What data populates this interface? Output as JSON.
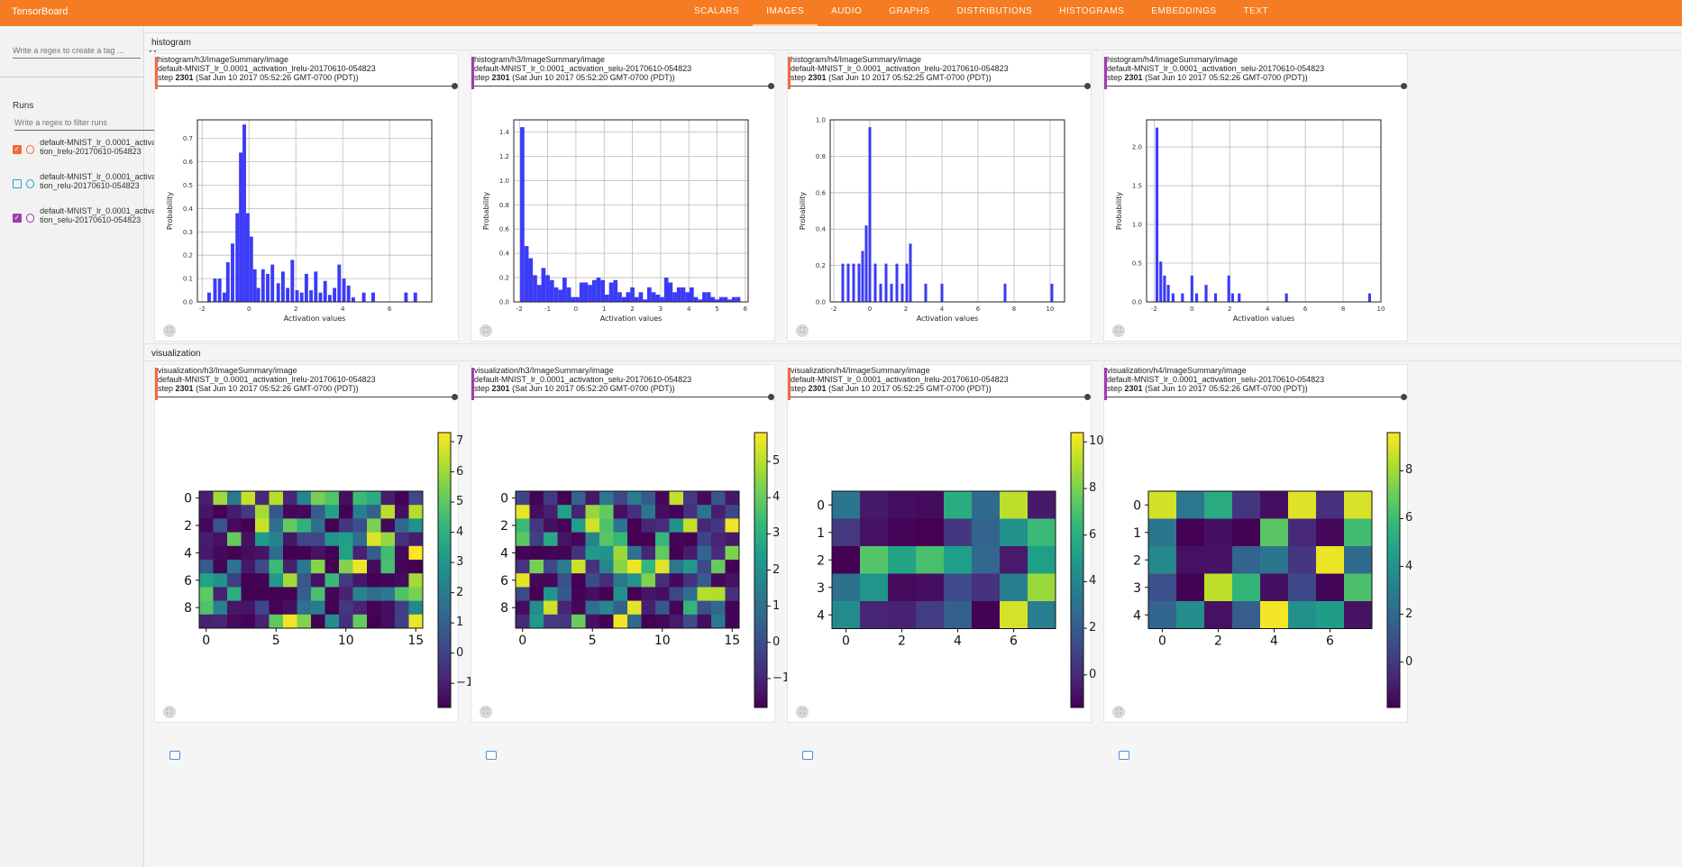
{
  "app": {
    "title": "TensorBoard",
    "tabs": [
      "SCALARS",
      "IMAGES",
      "AUDIO",
      "GRAPHS",
      "DISTRIBUTIONS",
      "HISTOGRAMS",
      "EMBEDDINGS",
      "TEXT"
    ],
    "active_tab": "IMAGES"
  },
  "sidebar": {
    "tag_filter_placeholder": "Write a regex to create a tag ...",
    "runs_title": "Runs",
    "run_filter_placeholder": "Write a regex to filter runs",
    "runs": [
      {
        "label": "default-MNIST_lr_0.0001_activation_lrelu-20170610-054823",
        "checked": true,
        "color": "#ef6c3a"
      },
      {
        "label": "default-MNIST_lr_0.0001_activation_relu-20170610-054823",
        "checked": false,
        "color": "#20a7c4"
      },
      {
        "label": "default-MNIST_lr_0.0001_activation_selu-20170610-054823",
        "checked": true,
        "color": "#a23bb0"
      }
    ]
  },
  "sections": [
    {
      "name": "histogram",
      "cards": [
        {
          "tag": "histogram/h3/ImageSummary/image",
          "run": "default-MNIST_lr_0.0001_activation_lrelu-20170610-054823",
          "step_label": "step",
          "step": "2301",
          "time": "(Sat Jun 10 2017 05:52:26 GMT-0700 (PDT))",
          "color": "#ef6c3a"
        },
        {
          "tag": "histogram/h3/ImageSummary/image",
          "run": "default-MNIST_lr_0.0001_activation_selu-20170610-054823",
          "step_label": "step",
          "step": "2301",
          "time": "(Sat Jun 10 2017 05:52:20 GMT-0700 (PDT))",
          "color": "#a23bb0"
        },
        {
          "tag": "histogram/h4/ImageSummary/image",
          "run": "default-MNIST_lr_0.0001_activation_lrelu-20170610-054823",
          "step_label": "step",
          "step": "2301",
          "time": "(Sat Jun 10 2017 05:52:25 GMT-0700 (PDT))",
          "color": "#ef6c3a"
        },
        {
          "tag": "histogram/h4/ImageSummary/image",
          "run": "default-MNIST_lr_0.0001_activation_selu-20170610-054823",
          "step_label": "step",
          "step": "2301",
          "time": "(Sat Jun 10 2017 05:52:26 GMT-0700 (PDT))",
          "color": "#a23bb0"
        }
      ]
    },
    {
      "name": "visualization",
      "cards": [
        {
          "tag": "visualization/h3/ImageSummary/image",
          "run": "default-MNIST_lr_0.0001_activation_lrelu-20170610-054823",
          "step_label": "step",
          "step": "2301",
          "time": "(Sat Jun 10 2017 05:52:26 GMT-0700 (PDT))",
          "color": "#ef6c3a"
        },
        {
          "tag": "visualization/h3/ImageSummary/image",
          "run": "default-MNIST_lr_0.0001_activation_selu-20170610-054823",
          "step_label": "step",
          "step": "2301",
          "time": "(Sat Jun 10 2017 05:52:20 GMT-0700 (PDT))",
          "color": "#a23bb0"
        },
        {
          "tag": "visualization/h4/ImageSummary/image",
          "run": "default-MNIST_lr_0.0001_activation_lrelu-20170610-054823",
          "step_label": "step",
          "step": "2301",
          "time": "(Sat Jun 10 2017 05:52:25 GMT-0700 (PDT))",
          "color": "#ef6c3a"
        },
        {
          "tag": "visualization/h4/ImageSummary/image",
          "run": "default-MNIST_lr_0.0001_activation_selu-20170610-054823",
          "step_label": "step",
          "step": "2301",
          "time": "(Sat Jun 10 2017 05:52:26 GMT-0700 (PDT))",
          "color": "#a23bb0"
        }
      ]
    }
  ],
  "icons": {
    "fullscreen": "fullscreen-icon",
    "image": "image-icon"
  },
  "chart_data": [
    {
      "type": "bar",
      "xlabel": "Activation values",
      "ylabel": "Probability",
      "xlim": [
        -2.2,
        7.8
      ],
      "ylim": [
        0,
        0.78
      ],
      "xticks": [
        -2,
        0,
        2,
        4,
        6
      ],
      "yticks": [
        0,
        0.1,
        0.2,
        0.3,
        0.4,
        0.5,
        0.6,
        0.7
      ],
      "x": [
        -1.7,
        -1.45,
        -1.25,
        -1.05,
        -0.9,
        -0.7,
        -0.5,
        -0.35,
        -0.2,
        -0.05,
        0.1,
        0.25,
        0.4,
        0.6,
        0.8,
        1.0,
        1.25,
        1.45,
        1.65,
        1.85,
        2.05,
        2.25,
        2.45,
        2.65,
        2.85,
        3.05,
        3.25,
        3.45,
        3.65,
        3.85,
        4.05,
        4.25,
        4.45,
        4.9,
        5.3,
        6.7,
        7.1
      ],
      "values": [
        0.04,
        0.1,
        0.1,
        0.04,
        0.17,
        0.25,
        0.38,
        0.64,
        0.76,
        0.38,
        0.28,
        0.14,
        0.06,
        0.14,
        0.12,
        0.16,
        0.08,
        0.13,
        0.06,
        0.18,
        0.05,
        0.04,
        0.12,
        0.05,
        0.13,
        0.04,
        0.09,
        0.03,
        0.06,
        0.16,
        0.1,
        0.07,
        0.02,
        0.04,
        0.04,
        0.04,
        0.04
      ]
    },
    {
      "type": "bar",
      "xlabel": "Activation values",
      "ylabel": "Probability",
      "xlim": [
        -2.2,
        6.1
      ],
      "ylim": [
        0,
        1.5
      ],
      "xticks": [
        -2,
        -1,
        0,
        1,
        2,
        3,
        4,
        5,
        6
      ],
      "yticks": [
        0,
        0.2,
        0.4,
        0.6,
        0.8,
        1.0,
        1.2,
        1.4
      ],
      "x": [
        -1.9,
        -1.75,
        -1.6,
        -1.45,
        -1.3,
        -1.15,
        -1.0,
        -0.85,
        -0.7,
        -0.55,
        -0.4,
        -0.25,
        -0.1,
        0.05,
        0.2,
        0.35,
        0.5,
        0.65,
        0.8,
        0.95,
        1.1,
        1.25,
        1.4,
        1.55,
        1.7,
        1.85,
        2.0,
        2.15,
        2.3,
        2.45,
        2.6,
        2.75,
        2.9,
        3.05,
        3.2,
        3.35,
        3.5,
        3.65,
        3.8,
        3.95,
        4.1,
        4.25,
        4.4,
        4.55,
        4.7,
        4.85,
        5.0,
        5.15,
        5.3,
        5.45,
        5.6,
        5.75
      ],
      "values": [
        1.44,
        0.46,
        0.36,
        0.22,
        0.14,
        0.28,
        0.22,
        0.18,
        0.12,
        0.1,
        0.2,
        0.12,
        0.04,
        0.04,
        0.16,
        0.16,
        0.14,
        0.18,
        0.2,
        0.18,
        0.06,
        0.16,
        0.18,
        0.08,
        0.04,
        0.08,
        0.12,
        0.04,
        0.08,
        0.02,
        0.12,
        0.08,
        0.06,
        0.04,
        0.2,
        0.16,
        0.08,
        0.12,
        0.12,
        0.08,
        0.12,
        0.04,
        0.02,
        0.08,
        0.08,
        0.04,
        0.02,
        0.04,
        0.04,
        0.02,
        0.04,
        0.04
      ]
    },
    {
      "type": "bar",
      "xlabel": "Activation values",
      "ylabel": "Probability",
      "xlim": [
        -2.2,
        10.8
      ],
      "ylim": [
        0,
        1.0
      ],
      "xticks": [
        -2,
        0,
        2,
        4,
        6,
        8,
        10
      ],
      "yticks": [
        0,
        0.2,
        0.4,
        0.6,
        0.8,
        1.0
      ],
      "x": [
        -1.5,
        -1.2,
        -0.9,
        -0.6,
        -0.4,
        -0.2,
        0.0,
        0.3,
        0.6,
        0.9,
        1.2,
        1.5,
        1.8,
        2.05,
        2.25,
        3.1,
        4.0,
        7.5,
        10.1
      ],
      "values": [
        0.21,
        0.21,
        0.21,
        0.21,
        0.28,
        0.42,
        0.96,
        0.21,
        0.1,
        0.21,
        0.1,
        0.21,
        0.1,
        0.21,
        0.32,
        0.1,
        0.1,
        0.1,
        0.1
      ]
    },
    {
      "type": "bar",
      "xlabel": "Activation values",
      "ylabel": "Probability",
      "xlim": [
        -2.4,
        10.0
      ],
      "ylim": [
        0,
        2.35
      ],
      "xticks": [
        -2,
        0,
        2,
        4,
        6,
        8,
        10
      ],
      "yticks": [
        0,
        0.5,
        1.0,
        1.5,
        2.0
      ],
      "x": [
        -1.85,
        -1.65,
        -1.45,
        -1.25,
        -1.0,
        -0.5,
        0.0,
        0.25,
        0.75,
        1.25,
        1.95,
        2.15,
        2.5,
        5.0,
        9.4
      ],
      "values": [
        2.25,
        0.52,
        0.34,
        0.22,
        0.11,
        0.11,
        0.34,
        0.11,
        0.22,
        0.11,
        0.34,
        0.11,
        0.11,
        0.11,
        0.11
      ]
    },
    {
      "type": "heatmap",
      "rows": 10,
      "cols": 16,
      "xticks": [
        0,
        5,
        10,
        15
      ],
      "yticks": [
        0,
        2,
        4,
        6,
        8
      ],
      "colorbar_ticks": [
        -1,
        0,
        1,
        2,
        3,
        4,
        5,
        6,
        7
      ],
      "vmin": -1.8,
      "vmax": 7.3,
      "seed": 3
    },
    {
      "type": "heatmap",
      "rows": 10,
      "cols": 16,
      "xticks": [
        0,
        5,
        10,
        15
      ],
      "yticks": [
        0,
        2,
        4,
        6,
        8
      ],
      "colorbar_ticks": [
        -1,
        0,
        1,
        2,
        3,
        4,
        5
      ],
      "vmin": -1.8,
      "vmax": 5.8,
      "seed": 7
    },
    {
      "type": "heatmap",
      "rows": 5,
      "cols": 8,
      "xticks": [
        0,
        2,
        4,
        6
      ],
      "yticks": [
        0,
        1,
        2,
        3,
        4
      ],
      "colorbar_ticks": [
        0,
        2,
        4,
        6,
        8,
        10
      ],
      "vmin": -1.4,
      "vmax": 10.4,
      "seed": 11
    },
    {
      "type": "heatmap",
      "rows": 5,
      "cols": 8,
      "xticks": [
        0,
        2,
        4,
        6
      ],
      "yticks": [
        0,
        1,
        2,
        3,
        4
      ],
      "colorbar_ticks": [
        0,
        2,
        4,
        6,
        8
      ],
      "vmin": -1.9,
      "vmax": 9.6,
      "seed": 19
    }
  ]
}
